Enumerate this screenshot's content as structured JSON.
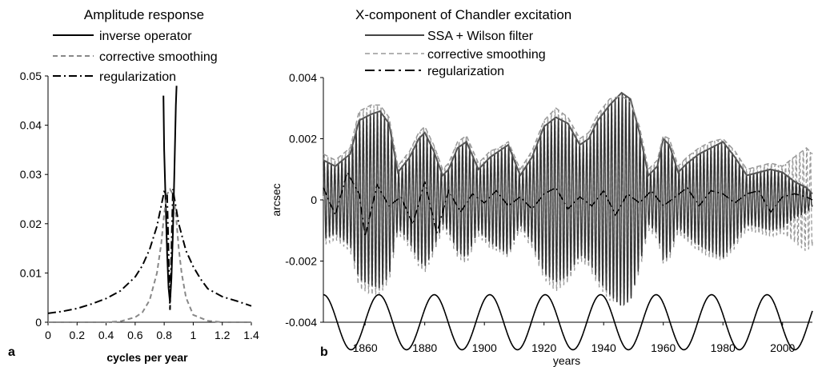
{
  "chart_data": [
    {
      "panel": "a",
      "type": "line",
      "title": "Amplitude response",
      "xlabel": "cycles per year",
      "ylabel": "",
      "xlim": [
        0,
        1.4
      ],
      "ylim": [
        0,
        0.05
      ],
      "xticks": [
        "0",
        "0.2",
        "0.4",
        "0.6",
        "0.8",
        "1",
        "1.2",
        "1.4"
      ],
      "yticks": [
        "0",
        "0.01",
        "0.02",
        "0.03",
        "0.04",
        "0.05"
      ],
      "grid": false,
      "legend_position": "top",
      "series": [
        {
          "name": "inverse operator",
          "style": "solid",
          "x": [
            0.795,
            0.8,
            0.81,
            0.82,
            0.83,
            0.84,
            0.85,
            0.86,
            0.87,
            0.88,
            0.885
          ],
          "y": [
            0.046,
            0.035,
            0.024,
            0.014,
            0.007,
            0.004,
            0.009,
            0.018,
            0.03,
            0.044,
            0.048
          ]
        },
        {
          "name": "corrective smoothing",
          "style": "dashed",
          "x": [
            0,
            0.4,
            0.5,
            0.6,
            0.65,
            0.7,
            0.75,
            0.78,
            0.8,
            0.82,
            0.84,
            0.86,
            0.88,
            0.9,
            0.92,
            0.95,
            1.0,
            1.1,
            1.2,
            1.4
          ],
          "y": [
            0,
            0,
            0.0002,
            0.001,
            0.002,
            0.0045,
            0.01,
            0.016,
            0.022,
            0.026,
            0.027,
            0.026,
            0.022,
            0.015,
            0.01,
            0.005,
            0.0015,
            0.0003,
            0,
            0
          ]
        },
        {
          "name": "regularization",
          "style": "dashdot",
          "x": [
            0,
            0.1,
            0.2,
            0.3,
            0.4,
            0.5,
            0.6,
            0.65,
            0.7,
            0.75,
            0.8,
            0.82,
            0.84,
            0.86,
            0.9,
            0.95,
            1.0,
            1.05,
            1.1,
            1.2,
            1.3,
            1.4
          ],
          "y": [
            0.0018,
            0.0022,
            0.0028,
            0.0037,
            0.0048,
            0.0064,
            0.0092,
            0.0115,
            0.0148,
            0.0195,
            0.0265,
            0.026,
            0.0025,
            0.027,
            0.02,
            0.0145,
            0.0113,
            0.0088,
            0.0068,
            0.0052,
            0.0043,
            0.0033
          ]
        }
      ]
    },
    {
      "panel": "b",
      "type": "line",
      "title": "X-component of Chandler excitation",
      "xlabel": "years",
      "ylabel": "arcsec",
      "xlim": [
        1846,
        2010
      ],
      "ylim": [
        -0.004,
        0.004
      ],
      "xticks": [
        "1860",
        "1880",
        "1900",
        "1920",
        "1940",
        "1960",
        "1980",
        "2000"
      ],
      "yticks": [
        "-0.004",
        "-0.002",
        "0",
        "0.002",
        "0.004"
      ],
      "grid": false,
      "legend_position": "top",
      "chandler_period_years": 1.19,
      "series": [
        {
          "name": "SSA + Wilson filter",
          "style": "solid",
          "envelope_x": [
            1846,
            1850,
            1855,
            1858,
            1862,
            1865,
            1868,
            1871,
            1875,
            1878,
            1880,
            1883,
            1886,
            1888,
            1891,
            1894,
            1898,
            1902,
            1905,
            1908,
            1912,
            1916,
            1920,
            1924,
            1928,
            1932,
            1935,
            1938,
            1942,
            1946,
            1949,
            1952,
            1955,
            1958,
            1960,
            1962,
            1965,
            1968,
            1972,
            1976,
            1980,
            1984,
            1988,
            1992,
            1996,
            2000,
            2004,
            2008,
            2010
          ],
          "envelope_y": [
            0.0013,
            0.0011,
            0.0015,
            0.0026,
            0.0028,
            0.0029,
            0.0025,
            0.0009,
            0.0014,
            0.002,
            0.0022,
            0.0016,
            0.0008,
            0.001,
            0.0017,
            0.0019,
            0.001,
            0.0014,
            0.0016,
            0.0018,
            0.0008,
            0.0014,
            0.0024,
            0.0027,
            0.0025,
            0.0018,
            0.002,
            0.0026,
            0.0031,
            0.0035,
            0.0033,
            0.0022,
            0.0008,
            0.0011,
            0.002,
            0.0018,
            0.0009,
            0.0012,
            0.0015,
            0.0017,
            0.0019,
            0.0014,
            0.0008,
            0.0009,
            0.001,
            0.0009,
            0.0006,
            0.0004,
            0.0002
          ]
        },
        {
          "name": "corrective smoothing",
          "style": "dashed",
          "envelope_x": [
            1846,
            1850,
            1855,
            1858,
            1862,
            1865,
            1868,
            1871,
            1875,
            1878,
            1880,
            1883,
            1886,
            1888,
            1891,
            1894,
            1898,
            1902,
            1905,
            1908,
            1912,
            1916,
            1920,
            1924,
            1928,
            1932,
            1935,
            1938,
            1942,
            1946,
            1949,
            1952,
            1955,
            1958,
            1960,
            1962,
            1965,
            1968,
            1972,
            1976,
            1980,
            1984,
            1988,
            1992,
            1996,
            2000,
            2004,
            2008,
            2010
          ],
          "envelope_y": [
            0.0015,
            0.0013,
            0.0017,
            0.0029,
            0.0031,
            0.0031,
            0.0027,
            0.0011,
            0.0016,
            0.0022,
            0.0024,
            0.0018,
            0.001,
            0.0012,
            0.0019,
            0.0021,
            0.0012,
            0.0016,
            0.0017,
            0.0019,
            0.001,
            0.0016,
            0.0026,
            0.003,
            0.0027,
            0.002,
            0.0022,
            0.0028,
            0.0033,
            0.0034,
            0.0032,
            0.0024,
            0.001,
            0.0013,
            0.0021,
            0.002,
            0.0011,
            0.0014,
            0.0017,
            0.0019,
            0.002,
            0.0016,
            0.001,
            0.0011,
            0.0012,
            0.0011,
            0.0014,
            0.0017,
            0.0015
          ]
        },
        {
          "name": "regularization",
          "style": "dashdot",
          "x": [
            1846,
            1850,
            1854,
            1858,
            1860,
            1864,
            1868,
            1872,
            1876,
            1880,
            1884,
            1888,
            1892,
            1896,
            1900,
            1904,
            1908,
            1912,
            1916,
            1920,
            1924,
            1928,
            1932,
            1936,
            1940,
            1944,
            1948,
            1952,
            1956,
            1960,
            1964,
            1968,
            1972,
            1976,
            1980,
            1984,
            1988,
            1992,
            1996,
            2000,
            2004,
            2008,
            2010
          ],
          "y": [
            0.0004,
            -0.0005,
            0.0009,
            0.0002,
            -0.0012,
            0.0005,
            -0.0002,
            0.0001,
            -0.0008,
            0.0006,
            -0.0011,
            0.0003,
            -0.0004,
            0.0002,
            -0.0001,
            0.0003,
            -0.0002,
            0.0001,
            -0.0003,
            0.0002,
            0.0004,
            -0.0003,
            0.0001,
            -0.0002,
            0.0003,
            -0.0005,
            0.0002,
            -0.0001,
            0.0003,
            -0.0002,
            0.0001,
            0.0004,
            -0.0002,
            0.0003,
            0.0002,
            -0.0001,
            0.0002,
            0.0003,
            -0.0004,
            0.0001,
            0.0002,
            0.0001,
            0.0
          ]
        }
      ],
      "reference_curve": {
        "style": "solid",
        "period_years": 18.6,
        "x0": 1846.0,
        "center": -0.004,
        "amplitude": 0.0009
      }
    }
  ]
}
